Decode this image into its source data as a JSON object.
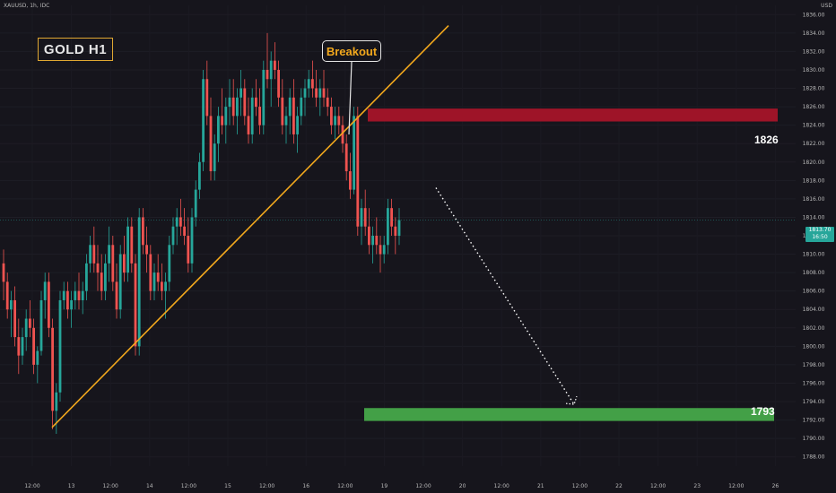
{
  "header": {
    "symbol": "XAUUSD, 1h, IDC"
  },
  "axis": {
    "unit": "USD"
  },
  "annotations": {
    "title": "GOLD H1",
    "breakout": "Breakout",
    "resistance_label": "1826",
    "target_label": "1793"
  },
  "price_tag": {
    "price": "1813.70",
    "countdown": "16:50"
  },
  "colors": {
    "background": "#16151c",
    "bull": "#26a69a",
    "bear": "#ef5350",
    "trendline": "#f2a81d",
    "resistance_zone": "#9e1428",
    "target_zone": "#43a047"
  },
  "chart_data": {
    "type": "candlestick",
    "symbol": "XAUUSD",
    "timeframe": "1h",
    "ylim": [
      1787,
      1837
    ],
    "y_ticks": [
      1788,
      1790,
      1792,
      1794,
      1796,
      1798,
      1800,
      1802,
      1804,
      1806,
      1808,
      1810,
      1812,
      1814,
      1816,
      1818,
      1820,
      1822,
      1824,
      1826,
      1828,
      1830,
      1832,
      1834,
      1836
    ],
    "x_tick_labels": [
      "12:00",
      "13",
      "12:00",
      "14",
      "12:00",
      "15",
      "12:00",
      "16",
      "12:00",
      "19",
      "12:00",
      "20",
      "12:00",
      "21",
      "12:00",
      "22",
      "12:00",
      "23",
      "12:00",
      "26"
    ],
    "current_price": 1813.7,
    "resistance_zone": [
      1824.4,
      1825.8
    ],
    "target_zone": [
      1791.9,
      1793.3
    ],
    "trendline": {
      "from": {
        "bar": 14,
        "price": 1791.2
      },
      "to": {
        "bar": 118,
        "price": 1834.8
      }
    },
    "projection": {
      "from": {
        "bar": 118,
        "price": 1817.2
      },
      "to": {
        "bar": 155,
        "price": 1793.7
      }
    },
    "candles": [
      [
        1809,
        1810.5,
        1805,
        1807
      ],
      [
        1807,
        1808,
        1803,
        1804
      ],
      [
        1804,
        1806,
        1801,
        1805
      ],
      [
        1805,
        1806.5,
        1800,
        1801
      ],
      [
        1801,
        1803,
        1797,
        1799
      ],
      [
        1799,
        1802,
        1798,
        1801
      ],
      [
        1801,
        1804,
        1799.5,
        1803
      ],
      [
        1803,
        1805,
        1801,
        1802
      ],
      [
        1802,
        1803,
        1797,
        1798
      ],
      [
        1798,
        1800,
        1796,
        1799.5
      ],
      [
        1799.5,
        1806,
        1799,
        1805
      ],
      [
        1805,
        1808,
        1803,
        1807
      ],
      [
        1807,
        1808,
        1801,
        1802
      ],
      [
        1802,
        1803,
        1791,
        1793
      ],
      [
        1793,
        1796,
        1790.5,
        1795
      ],
      [
        1795,
        1806,
        1794,
        1805
      ],
      [
        1805,
        1807,
        1804,
        1806
      ],
      [
        1806,
        1807,
        1803,
        1804
      ],
      [
        1804,
        1806,
        1802,
        1805
      ],
      [
        1805,
        1807,
        1804,
        1806
      ],
      [
        1806,
        1808,
        1804,
        1805
      ],
      [
        1805,
        1807,
        1803.5,
        1806
      ],
      [
        1806,
        1810,
        1805,
        1809
      ],
      [
        1809,
        1812,
        1808,
        1811
      ],
      [
        1811,
        1813,
        1808,
        1809
      ],
      [
        1809,
        1811,
        1806,
        1808
      ],
      [
        1808,
        1810,
        1805,
        1806
      ],
      [
        1806,
        1810,
        1805,
        1809
      ],
      [
        1809,
        1813,
        1807,
        1811
      ],
      [
        1811,
        1812,
        1806,
        1807
      ],
      [
        1807,
        1809,
        1803,
        1804
      ],
      [
        1804,
        1811,
        1803,
        1810
      ],
      [
        1810,
        1812,
        1807,
        1808
      ],
      [
        1808,
        1814,
        1807,
        1813
      ],
      [
        1813,
        1814,
        1808,
        1809
      ],
      [
        1809,
        1810,
        1799,
        1800
      ],
      [
        1800,
        1815,
        1799,
        1814
      ],
      [
        1814,
        1815,
        1810,
        1811
      ],
      [
        1811,
        1813,
        1808,
        1810
      ],
      [
        1810,
        1811,
        1805,
        1806
      ],
      [
        1806,
        1809,
        1805,
        1808
      ],
      [
        1808,
        1810,
        1806,
        1807
      ],
      [
        1807,
        1809,
        1805,
        1806
      ],
      [
        1806,
        1808,
        1803,
        1807
      ],
      [
        1807,
        1812,
        1806,
        1811
      ],
      [
        1811,
        1814,
        1810,
        1813
      ],
      [
        1813,
        1815,
        1811,
        1814
      ],
      [
        1814,
        1816,
        1812,
        1813
      ],
      [
        1813,
        1815,
        1811,
        1812
      ],
      [
        1812,
        1814,
        1808,
        1809
      ],
      [
        1809,
        1815,
        1808,
        1814
      ],
      [
        1814,
        1818,
        1813,
        1817
      ],
      [
        1817,
        1821,
        1816,
        1820
      ],
      [
        1820,
        1830,
        1819,
        1829
      ],
      [
        1829,
        1831,
        1824,
        1825
      ],
      [
        1825,
        1827,
        1818,
        1819
      ],
      [
        1819,
        1823,
        1818,
        1822
      ],
      [
        1822,
        1826,
        1820,
        1825
      ],
      [
        1825,
        1828,
        1823,
        1824
      ],
      [
        1824,
        1827,
        1822,
        1826
      ],
      [
        1826,
        1829,
        1824,
        1827
      ],
      [
        1827,
        1829,
        1824,
        1825
      ],
      [
        1825,
        1828,
        1823,
        1827
      ],
      [
        1827,
        1830,
        1825,
        1828
      ],
      [
        1828,
        1829,
        1824,
        1825
      ],
      [
        1825,
        1827,
        1822,
        1823
      ],
      [
        1823,
        1828,
        1822,
        1827
      ],
      [
        1827,
        1829,
        1825,
        1826
      ],
      [
        1826,
        1828,
        1823,
        1824
      ],
      [
        1824,
        1831,
        1823,
        1830
      ],
      [
        1830,
        1834,
        1828,
        1829
      ],
      [
        1829,
        1832,
        1826,
        1831
      ],
      [
        1831,
        1833,
        1829,
        1830
      ],
      [
        1830,
        1831,
        1826,
        1827
      ],
      [
        1827,
        1829,
        1823,
        1824
      ],
      [
        1824,
        1826,
        1822,
        1825
      ],
      [
        1825,
        1828,
        1823,
        1827
      ],
      [
        1827,
        1829,
        1822,
        1823
      ],
      [
        1823,
        1826,
        1821,
        1825
      ],
      [
        1825,
        1828,
        1824,
        1827
      ],
      [
        1827,
        1829,
        1825,
        1828
      ],
      [
        1828,
        1830,
        1827,
        1829
      ],
      [
        1829,
        1831,
        1827,
        1828
      ],
      [
        1828,
        1830,
        1826,
        1827
      ],
      [
        1827,
        1829,
        1825,
        1828
      ],
      [
        1828,
        1830,
        1826,
        1827
      ],
      [
        1827,
        1828,
        1825,
        1826
      ],
      [
        1826,
        1827,
        1823,
        1824
      ],
      [
        1824,
        1826,
        1822.5,
        1825
      ],
      [
        1825,
        1826,
        1823,
        1824
      ],
      [
        1824,
        1825,
        1821,
        1822
      ],
      [
        1822,
        1823,
        1818,
        1819
      ],
      [
        1819,
        1821,
        1816,
        1817
      ],
      [
        1817,
        1826,
        1816.5,
        1825
      ],
      [
        1825,
        1826,
        1812,
        1813
      ],
      [
        1813,
        1816,
        1811,
        1815
      ],
      [
        1815,
        1817,
        1812,
        1813
      ],
      [
        1813,
        1815,
        1810,
        1811
      ],
      [
        1811,
        1813,
        1809,
        1812
      ],
      [
        1812,
        1814,
        1810,
        1811
      ],
      [
        1811,
        1812,
        1808,
        1810
      ],
      [
        1810,
        1812,
        1809,
        1811
      ],
      [
        1811,
        1816,
        1810,
        1815
      ],
      [
        1815,
        1816,
        1812,
        1813
      ],
      [
        1813,
        1814,
        1810,
        1812
      ],
      [
        1812,
        1815,
        1811,
        1813.7
      ]
    ]
  }
}
